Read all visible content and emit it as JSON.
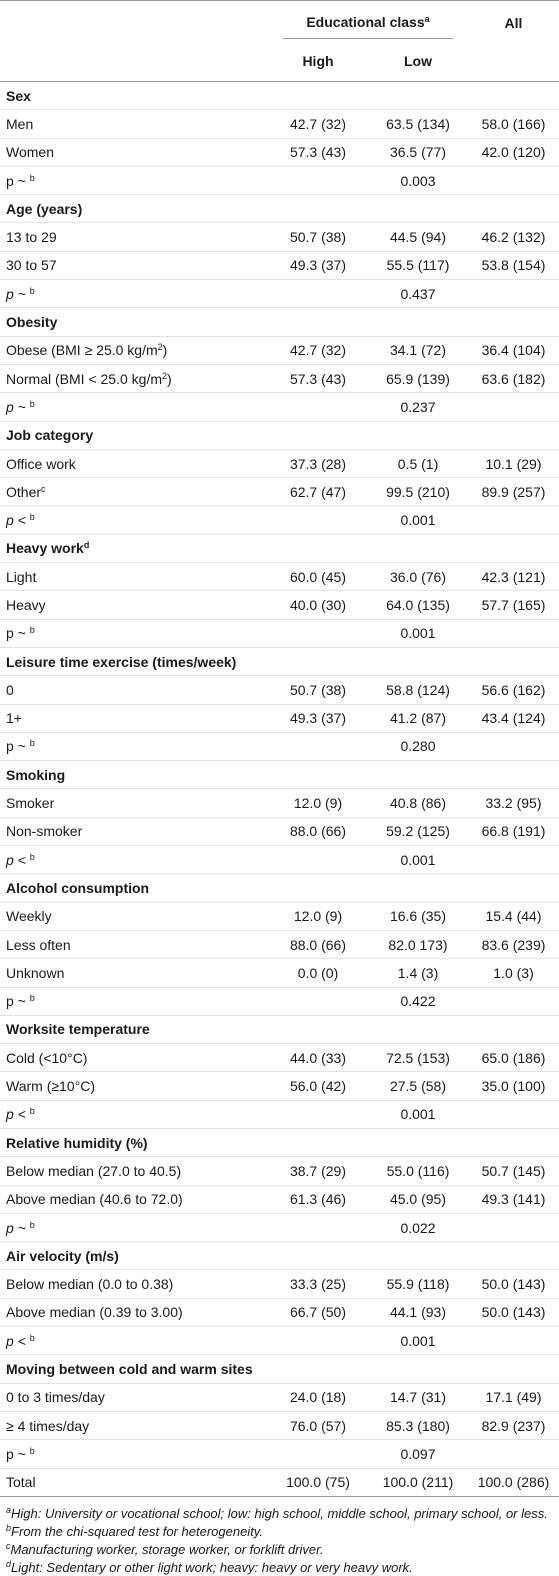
{
  "header": {
    "edu_class": "Educational class",
    "edu_sup": "a",
    "all": "All",
    "high": "High",
    "low": "Low"
  },
  "rows": [
    {
      "type": "section",
      "label": "Sex"
    },
    {
      "type": "data",
      "label": "Men",
      "high": "42.7 (32)",
      "low": "63.5 (134)",
      "all": "58.0 (166)"
    },
    {
      "type": "data",
      "label": "Women",
      "high": "57.3 (43)",
      "low": "36.5 (77)",
      "all": "42.0 (120)"
    },
    {
      "type": "p",
      "label": "p ~",
      "sup": "b",
      "italic": false,
      "low": "0.003"
    },
    {
      "type": "section",
      "label": "Age (years)"
    },
    {
      "type": "data",
      "label": "13 to 29",
      "high": "50.7 (38)",
      "low": "44.5 (94)",
      "all": "46.2 (132)"
    },
    {
      "type": "data",
      "label": "30 to 57",
      "high": "49.3 (37)",
      "low": "55.5 (117)",
      "all": "53.8 (154)"
    },
    {
      "type": "p",
      "label": "p ~",
      "sup": "b",
      "italic": true,
      "low": "0.437"
    },
    {
      "type": "section",
      "label": "Obesity"
    },
    {
      "type": "data",
      "label": "Obese (BMI ≥ 25.0 kg/m",
      "labelsup": "2",
      "labelafter": ")",
      "high": "42.7 (32)",
      "low": "34.1 (72)",
      "all": "36.4 (104)"
    },
    {
      "type": "data",
      "label": "Normal (BMI < 25.0 kg/m",
      "labelsup": "2",
      "labelafter": ")",
      "high": "57.3 (43)",
      "low": "65.9 (139)",
      "all": "63.6 (182)"
    },
    {
      "type": "p",
      "label": "p ~",
      "sup": "b",
      "italic": true,
      "low": "0.237"
    },
    {
      "type": "section",
      "label": "Job category"
    },
    {
      "type": "data",
      "label": "Office work",
      "high": "37.3 (28)",
      "low": "0.5 (1)",
      "all": "10.1 (29)"
    },
    {
      "type": "data",
      "label": "Other",
      "labelsup": "c",
      "high": "62.7 (47)",
      "low": "99.5 (210)",
      "all": "89.9 (257)"
    },
    {
      "type": "p",
      "label": "p <",
      "sup": "b",
      "italic": true,
      "low": "0.001"
    },
    {
      "type": "section",
      "label": "Heavy work",
      "labelsup": "d"
    },
    {
      "type": "data",
      "label": "Light",
      "high": "60.0 (45)",
      "low": "36.0 (76)",
      "all": "42.3 (121)"
    },
    {
      "type": "data",
      "label": "Heavy",
      "high": "40.0 (30)",
      "low": "64.0 (135)",
      "all": "57.7 (165)"
    },
    {
      "type": "p",
      "label": "p ~",
      "sup": "b",
      "italic": false,
      "low": "0.001"
    },
    {
      "type": "section",
      "label": "Leisure time exercise (times/week)"
    },
    {
      "type": "data",
      "label": "0",
      "high": "50.7 (38)",
      "low": "58.8 (124)",
      "all": "56.6 (162)"
    },
    {
      "type": "data",
      "label": "1+",
      "high": "49.3 (37)",
      "low": "41.2 (87)",
      "all": "43.4 (124)"
    },
    {
      "type": "p",
      "label": "p ~",
      "sup": "b",
      "italic": false,
      "low": "0.280"
    },
    {
      "type": "section",
      "label": "Smoking"
    },
    {
      "type": "data",
      "label": "Smoker",
      "high": "12.0 (9)",
      "low": "40.8 (86)",
      "all": "33.2 (95)"
    },
    {
      "type": "data",
      "label": "Non-smoker",
      "high": "88.0 (66)",
      "low": "59.2 (125)",
      "all": "66.8 (191)"
    },
    {
      "type": "p",
      "label": "p <",
      "sup": "b",
      "italic": true,
      "low": "0.001"
    },
    {
      "type": "section",
      "label": "Alcohol consumption"
    },
    {
      "type": "data",
      "label": "Weekly",
      "high": "12.0 (9)",
      "low": "16.6 (35)",
      "all": "15.4 (44)"
    },
    {
      "type": "data",
      "label": "Less often",
      "high": "88.0 (66)",
      "low": "82.0 173)",
      "all": "83.6 (239)"
    },
    {
      "type": "data",
      "label": "Unknown",
      "high": "0.0 (0)",
      "low": "1.4 (3)",
      "all": "1.0 (3)"
    },
    {
      "type": "p",
      "label": "p ~",
      "sup": "b",
      "italic": false,
      "low": "0.422"
    },
    {
      "type": "section",
      "label": "Worksite temperature"
    },
    {
      "type": "data",
      "label": "Cold (<10°C)",
      "high": "44.0 (33)",
      "low": "72.5 (153)",
      "all": "65.0 (186)"
    },
    {
      "type": "data",
      "label": "Warm (≥10°C)",
      "high": "56.0 (42)",
      "low": "27.5 (58)",
      "all": "35.0 (100)"
    },
    {
      "type": "p",
      "label": "p <",
      "sup": "b",
      "italic": true,
      "low": "0.001"
    },
    {
      "type": "section",
      "label": "Relative humidity (%)"
    },
    {
      "type": "data",
      "label": "Below median (27.0 to 40.5)",
      "high": "38.7 (29)",
      "low": "55.0 (116)",
      "all": "50.7 (145)"
    },
    {
      "type": "data",
      "label": "Above median (40.6 to 72.0)",
      "high": "61.3 (46)",
      "low": "45.0 (95)",
      "all": "49.3 (141)"
    },
    {
      "type": "p",
      "label": "p ~",
      "sup": "b",
      "italic": true,
      "low": "0.022"
    },
    {
      "type": "section",
      "label": "Air velocity (m/s)"
    },
    {
      "type": "data",
      "label": "Below median (0.0 to 0.38)",
      "high": "33.3 (25)",
      "low": "55.9 (118)",
      "all": "50.0 (143)"
    },
    {
      "type": "data",
      "label": "Above median (0.39 to 3.00)",
      "high": "66.7 (50)",
      "low": "44.1 (93)",
      "all": "50.0 (143)"
    },
    {
      "type": "p",
      "label": "p <",
      "sup": "b",
      "italic": true,
      "low": "0.001"
    },
    {
      "type": "section",
      "label": "Moving between cold and warm sites"
    },
    {
      "type": "data",
      "label": "0 to 3 times/day",
      "high": "24.0 (18)",
      "low": "14.7 (31)",
      "all": "17.1 (49)"
    },
    {
      "type": "data",
      "label": "≥ 4 times/day",
      "high": "76.0 (57)",
      "low": "85.3 (180)",
      "all": "82.9 (237)"
    },
    {
      "type": "p",
      "label": "p ~",
      "sup": "b",
      "italic": false,
      "low": "0.097"
    },
    {
      "type": "data",
      "label": "Total",
      "high": "100.0 (75)",
      "low": "100.0 (211)",
      "all": "100.0 (286)"
    }
  ],
  "notes": [
    {
      "sup": "a",
      "text": "High: University or vocational school; low: high school, middle school, primary school, or less."
    },
    {
      "sup": "b",
      "text": "From the chi-squared test for heterogeneity."
    },
    {
      "sup": "c",
      "text": "Manufacturing worker, storage worker, or forklift driver."
    },
    {
      "sup": "d",
      "text": "Light: Sedentary or other light work; heavy: heavy or very heavy work."
    }
  ]
}
